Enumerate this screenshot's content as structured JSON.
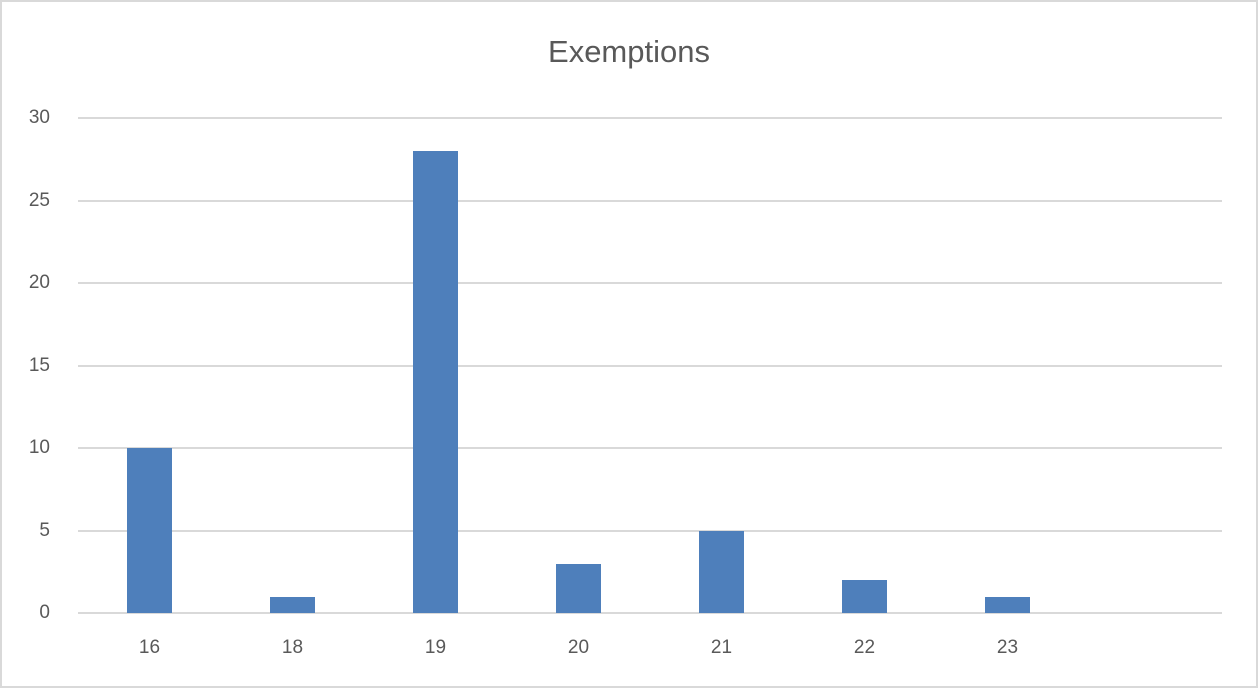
{
  "chart_data": {
    "type": "bar",
    "title": "Exemptions",
    "categories": [
      "16",
      "18",
      "19",
      "20",
      "21",
      "22",
      "23",
      ""
    ],
    "values": [
      10,
      1,
      28,
      3,
      5,
      2,
      1,
      null
    ],
    "xlabel": "",
    "ylabel": "",
    "ylim": [
      0,
      30
    ],
    "yticks": [
      "0",
      "5",
      "10",
      "15",
      "20",
      "25",
      "30"
    ],
    "grid": true,
    "legend": "none",
    "bar_color": "#4e7fbb"
  }
}
